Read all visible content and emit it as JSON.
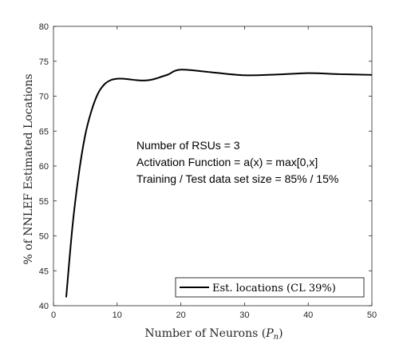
{
  "chart_data": {
    "type": "line",
    "xlabel": "Number of Neurons",
    "xlabel_symbol": "P",
    "xlabel_subscript": "n",
    "ylabel": "% of NNLEF Estimated Locations",
    "xlim": [
      0,
      50
    ],
    "ylim": [
      40,
      80
    ],
    "xticks": [
      0,
      10,
      20,
      30,
      40,
      50
    ],
    "yticks": [
      40,
      45,
      50,
      55,
      60,
      65,
      70,
      75,
      80
    ],
    "grid": false,
    "legend_position": "bottom-right",
    "annotations": [
      "Number of RSUs = 3",
      "Activation Function = a(x) = max[0,x]",
      "Training / Test data set size = 85% / 15%"
    ],
    "series": [
      {
        "name": "Est. locations (CL 39%)",
        "color": "#000000",
        "x": [
          2,
          3,
          4,
          5,
          6,
          7,
          8,
          9,
          10,
          11,
          12,
          13,
          14,
          15,
          16,
          17,
          18,
          20,
          25,
          30,
          35,
          40,
          45,
          50
        ],
        "y": [
          41.2,
          51.5,
          59.0,
          64.5,
          68.0,
          70.4,
          71.7,
          72.3,
          72.5,
          72.5,
          72.4,
          72.3,
          72.25,
          72.3,
          72.5,
          72.8,
          73.1,
          73.8,
          73.4,
          73.0,
          73.1,
          73.3,
          73.15,
          73.05
        ]
      }
    ]
  }
}
